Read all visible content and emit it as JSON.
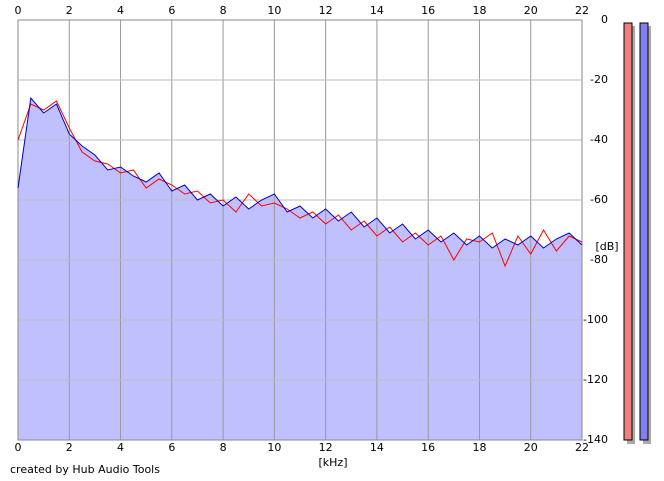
{
  "chart_data": {
    "type": "line",
    "x_label": "[kHz]",
    "y_label": "[dB]",
    "footer": "created by Hub Audio Tools",
    "x": [
      0,
      0.5,
      1,
      1.5,
      2,
      2.5,
      3,
      3.5,
      4,
      4.5,
      5,
      5.5,
      6,
      6.5,
      7,
      7.5,
      8,
      8.5,
      9,
      9.5,
      10,
      10.5,
      11,
      11.5,
      12,
      12.5,
      13,
      13.5,
      14,
      14.5,
      15,
      15.5,
      16,
      16.5,
      17,
      17.5,
      18,
      18.5,
      19,
      19.5,
      20,
      20.5,
      21,
      21.5,
      22
    ],
    "series": [
      {
        "color": "#ff0000",
        "values": [
          -40,
          -28,
          -30,
          -27,
          -36,
          -44,
          -47,
          -48,
          -51,
          -50,
          -56,
          -53,
          -55,
          -58,
          -57,
          -61,
          -60,
          -64,
          -58,
          -62,
          -61,
          -63,
          -66,
          -64,
          -68,
          -65,
          -70,
          -67,
          -72,
          -69,
          -74,
          -71,
          -75,
          -72,
          -80,
          -73,
          -74,
          -71,
          -82,
          -72,
          -78,
          -70,
          -77,
          -72,
          -74
        ]
      },
      {
        "color": "#0000cc",
        "fill_color": "#c0c0ff",
        "values": [
          -56,
          -26,
          -31,
          -28,
          -38,
          -42,
          -45,
          -50,
          -49,
          -52,
          -54,
          -51,
          -57,
          -55,
          -60,
          -58,
          -62,
          -59,
          -63,
          -60,
          -58,
          -64,
          -62,
          -66,
          -63,
          -67,
          -64,
          -69,
          -66,
          -71,
          -68,
          -73,
          -70,
          -74,
          -71,
          -75,
          -72,
          -76,
          -73,
          -75,
          -72,
          -76,
          -73,
          -71,
          -75
        ]
      }
    ],
    "xlim": [
      0,
      22
    ],
    "xticks": [
      0,
      2,
      4,
      6,
      8,
      10,
      12,
      14,
      16,
      18,
      20,
      22
    ],
    "ylim": [
      -140,
      0
    ],
    "yticks": [
      0,
      -20,
      -40,
      -60,
      -80,
      -100,
      -120,
      -140
    ],
    "grid": true
  }
}
